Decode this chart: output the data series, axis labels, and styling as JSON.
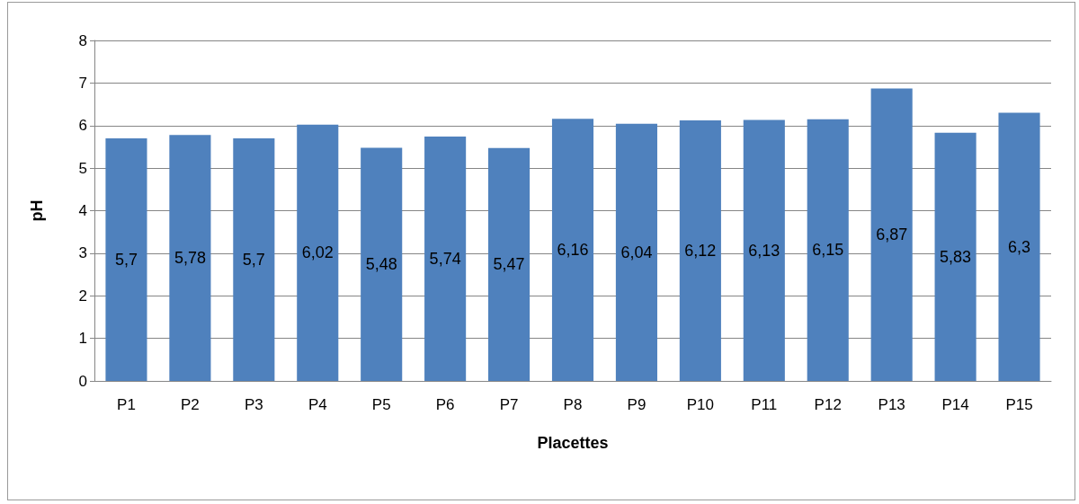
{
  "chart_data": {
    "type": "bar",
    "xlabel": "Placettes",
    "ylabel": "pH",
    "categories": [
      "P1",
      "P2",
      "P3",
      "P4",
      "P5",
      "P6",
      "P7",
      "P8",
      "P9",
      "P10",
      "P11",
      "P12",
      "P13",
      "P14",
      "P15"
    ],
    "values": [
      5.7,
      5.78,
      5.7,
      6.02,
      5.48,
      5.74,
      5.47,
      6.16,
      6.04,
      6.12,
      6.13,
      6.15,
      6.87,
      5.83,
      6.3
    ],
    "value_labels": [
      "5,7",
      "5,78",
      "5,7",
      "6,02",
      "5,48",
      "5,74",
      "5,47",
      "6,16",
      "6,04",
      "6,12",
      "6,13",
      "6,15",
      "6,87",
      "5,83",
      "6,3"
    ],
    "color": "#4f81bd",
    "ylim": [
      0,
      8
    ],
    "yticks": [
      0,
      1,
      2,
      3,
      4,
      5,
      6,
      7,
      8
    ],
    "grid": "y"
  }
}
